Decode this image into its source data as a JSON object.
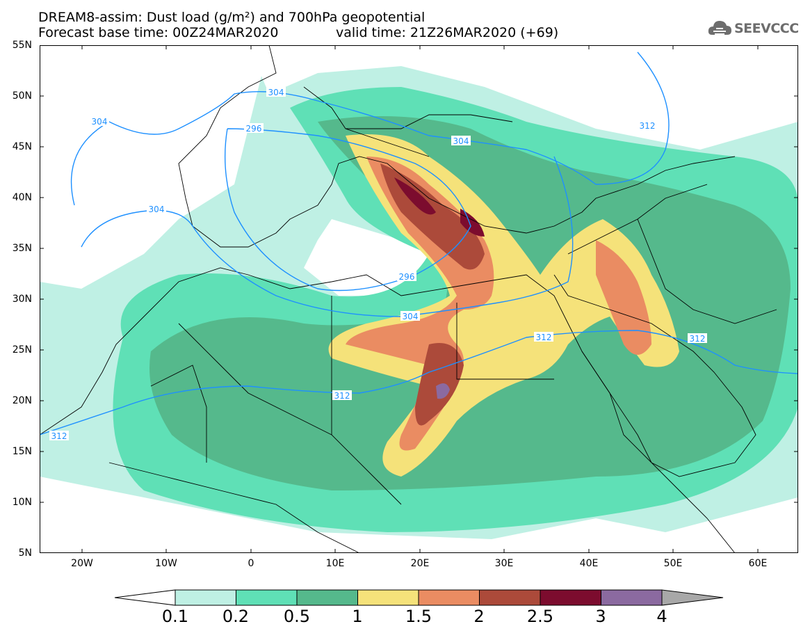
{
  "header": {
    "title_line1": "DREAM8-assim: Dust load (g/m²) and 700hPa geopotential",
    "base_time": "Forecast base time: 00Z24MAR2020",
    "valid_time": "valid time: 21Z26MAR2020 (+69)"
  },
  "logo": {
    "text": "SEEVCCC",
    "icon": "cloud-icon"
  },
  "map": {
    "lat_labels": [
      "55N",
      "50N",
      "45N",
      "40N",
      "35N",
      "30N",
      "25N",
      "20N",
      "15N",
      "10N",
      "5N"
    ],
    "lon_labels": [
      "20W",
      "10W",
      "0",
      "10E",
      "20E",
      "30E",
      "40E",
      "50E",
      "60E"
    ],
    "contour_labels": [
      "304",
      "304",
      "296",
      "304",
      "296",
      "304",
      "312",
      "304",
      "312",
      "312",
      "312",
      "312"
    ],
    "colors": {
      "contour": "#1e90ff",
      "border": "#000000"
    }
  },
  "colorbar": {
    "labels": [
      "0.1",
      "0.2",
      "0.5",
      "1",
      "1.5",
      "2",
      "2.5",
      "3",
      "4"
    ],
    "colors": [
      "#bff0e4",
      "#5fe0b6",
      "#55b98c",
      "#f5e27a",
      "#ea8c62",
      "#ac4a3a",
      "#7c0c2e",
      "#8b6aa0"
    ],
    "extend_low_color": "#ffffff",
    "extend_high_color": "#a8a8a8"
  }
}
